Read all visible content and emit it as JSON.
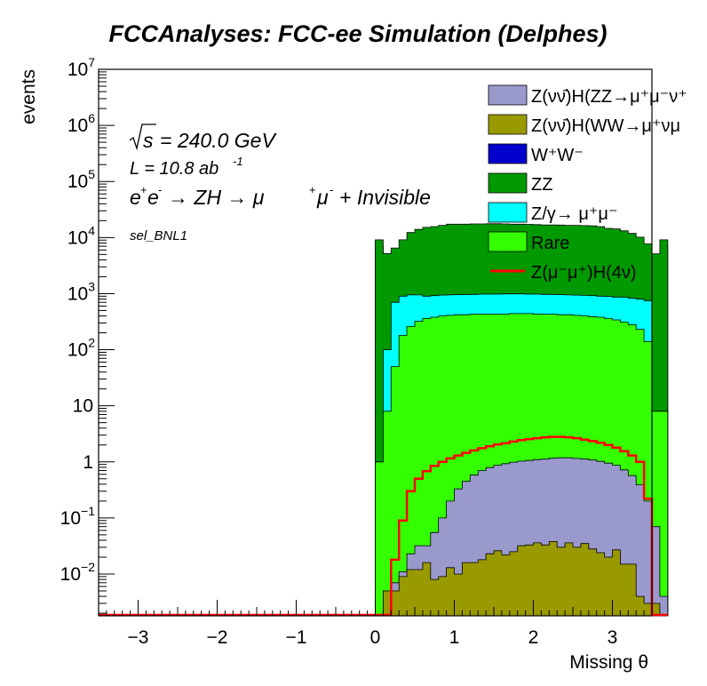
{
  "chart_data": {
    "type": "bar",
    "stacked": true,
    "title": "FCCAnalyses: FCC-ee Simulation (Delphes)",
    "xlabel": "Missing θ",
    "ylabel": "events",
    "xlim": [
      -3.5,
      3.5
    ],
    "ylim": [
      0.0018,
      10000000
    ],
    "log_y": true,
    "grid": false,
    "x_ticks": [
      -3,
      -2,
      -1,
      0,
      1,
      2,
      3
    ],
    "x_tick_labels": [
      "−3",
      "−2",
      "−1",
      "0",
      "1",
      "2",
      "3"
    ],
    "y_ticks": [
      0.01,
      0.1,
      1,
      10,
      100,
      1000,
      10000,
      100000,
      1000000,
      10000000
    ],
    "y_tick_labels": [
      {
        "base": "10",
        "exp": "−2"
      },
      {
        "base": "10",
        "exp": "−1"
      },
      {
        "base": "1",
        "exp": ""
      },
      {
        "base": "10",
        "exp": ""
      },
      {
        "base": "10",
        "exp": "2"
      },
      {
        "base": "10",
        "exp": "3"
      },
      {
        "base": "10",
        "exp": "4"
      },
      {
        "base": "10",
        "exp": "5"
      },
      {
        "base": "10",
        "exp": "6"
      },
      {
        "base": "10",
        "exp": "7"
      }
    ],
    "annotations": {
      "sqrt_s": "= 240.0 GeV",
      "lumi_prefix": "L = 10.8 ab",
      "lumi_exp": "-1",
      "process_prefix": "e",
      "process_text": "→ ZH → μ",
      "process_suffix": "+ Invisible",
      "selection": "sel_BNL1"
    },
    "legend": {
      "position": "top-right",
      "entries": [
        {
          "label": "Z(νν̄)H(ZZ→μ⁺μ⁻ν⁺",
          "color": "#9999cc",
          "style": "fill"
        },
        {
          "label": "Z(νν̄)H(WW→μ⁺νμ",
          "color": "#999900",
          "style": "fill"
        },
        {
          "label": "W⁺W⁻",
          "color": "#0000cc",
          "style": "fill"
        },
        {
          "label": "ZZ",
          "color": "#009900",
          "style": "fill"
        },
        {
          "label": "Z/γ→ μ⁺μ⁻",
          "color": "#00ffff",
          "style": "fill"
        },
        {
          "label": "Rare",
          "color": "#33ff00",
          "style": "fill"
        },
        {
          "label": "Z(μ⁻μ⁺)H(4ν)",
          "color": "#ff0000",
          "style": "line"
        }
      ]
    },
    "bin_width": 0.1,
    "x_bins_start": 0.0,
    "stack_totals": {
      "hzz_nunu": [
        0.0018,
        0.005,
        0.007,
        0.011,
        0.023,
        0.032,
        0.032,
        0.055,
        0.1,
        0.2,
        0.33,
        0.45,
        0.58,
        0.7,
        0.79,
        0.87,
        0.93,
        0.99,
        1.03,
        1.06,
        1.1,
        1.12,
        1.16,
        1.18,
        1.18,
        1.15,
        1.12,
        1.08,
        1.02,
        0.95,
        0.87,
        0.72,
        0.57,
        0.39,
        0.2,
        0.07,
        0.004
      ],
      "hww_nunu": [
        0.0018,
        0.005,
        0.005,
        0.009,
        0.012,
        0.012,
        0.016,
        0.008,
        0.009,
        0.013,
        0.01,
        0.016,
        0.016,
        0.018,
        0.023,
        0.026,
        0.022,
        0.025,
        0.032,
        0.033,
        0.036,
        0.033,
        0.038,
        0.03,
        0.036,
        0.03,
        0.035,
        0.028,
        0.024,
        0.02,
        0.027,
        0.015,
        0.015,
        0.004,
        0.003,
        0.003,
        0.0018
      ],
      "ww": [
        7000,
        4000,
        5000,
        6500,
        8200,
        9000,
        9500,
        9800,
        10200,
        10500,
        10500,
        10500,
        10600,
        10600,
        10700,
        10700,
        10600,
        10500,
        10500,
        10400,
        10300,
        10200,
        10200,
        10100,
        10000,
        10000,
        9900,
        9800,
        9500,
        9100,
        8900,
        8500,
        7900,
        7000,
        5500,
        3800,
        7000
      ],
      "zz": [
        7000,
        4000,
        5000,
        6500,
        8200,
        9000,
        9500,
        9800,
        10200,
        10500,
        10500,
        10500,
        10600,
        10600,
        10700,
        10700,
        10600,
        10500,
        10500,
        10400,
        10300,
        10200,
        10200,
        10100,
        10000,
        10000,
        9900,
        9800,
        9500,
        9100,
        8900,
        8500,
        7900,
        7000,
        5500,
        3800,
        7000
      ],
      "zgamma": [
        1.0,
        100,
        700,
        900,
        950,
        950,
        900,
        920,
        940,
        950,
        960,
        960,
        970,
        980,
        980,
        980,
        990,
        990,
        990,
        980,
        980,
        970,
        970,
        960,
        950,
        940,
        930,
        920,
        900,
        890,
        870,
        860,
        830,
        800,
        750,
        8.0,
        8.0
      ],
      "rare": [
        1.0,
        8.0,
        50,
        180,
        260,
        320,
        360,
        380,
        400,
        410,
        420,
        420,
        430,
        430,
        430,
        430,
        430,
        440,
        440,
        440,
        430,
        430,
        430,
        420,
        420,
        410,
        400,
        390,
        380,
        360,
        340,
        310,
        280,
        230,
        140,
        8.0,
        8.0
      ]
    },
    "signal_line": [
      0.0018,
      0.0018,
      0.018,
      0.09,
      0.3,
      0.5,
      0.68,
      0.85,
      1.0,
      1.15,
      1.3,
      1.45,
      1.6,
      1.75,
      1.9,
      2.05,
      2.15,
      2.3,
      2.45,
      2.55,
      2.65,
      2.75,
      2.8,
      2.8,
      2.75,
      2.65,
      2.5,
      2.35,
      2.2,
      2.0,
      1.8,
      1.55,
      1.3,
      1.0,
      0.22,
      0.0018,
      0.0018
    ]
  }
}
